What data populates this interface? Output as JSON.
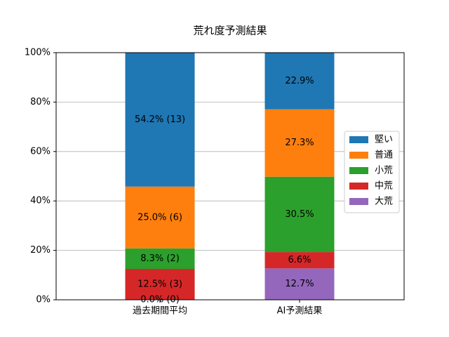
{
  "chart_data": {
    "type": "stacked_bar",
    "title": "荒れ度予測結果",
    "categories": [
      "過去期間平均",
      "AI予測結果"
    ],
    "series": [
      {
        "name": "堅い",
        "color": "#1f77b4",
        "values": [
          54.2,
          22.9
        ],
        "value_labels": [
          "54.2% (13)",
          "22.9%"
        ]
      },
      {
        "name": "普通",
        "color": "#ff7f0e",
        "values": [
          25.0,
          27.3
        ],
        "value_labels": [
          "25.0% (6)",
          "27.3%"
        ]
      },
      {
        "name": "小荒",
        "color": "#2ca02c",
        "values": [
          8.3,
          30.5
        ],
        "value_labels": [
          "8.3% (2)",
          "30.5%"
        ]
      },
      {
        "name": "中荒",
        "color": "#d62728",
        "values": [
          12.5,
          6.6
        ],
        "value_labels": [
          "12.5% (3)",
          "6.6%"
        ]
      },
      {
        "name": "大荒",
        "color": "#9467bd",
        "values": [
          0.0,
          12.7
        ],
        "value_labels": [
          "0.0% (0)",
          "12.7%"
        ]
      }
    ],
    "ylim": [
      0,
      100
    ],
    "yticks": [
      {
        "value": 0,
        "label": "0%"
      },
      {
        "value": 20,
        "label": "20%"
      },
      {
        "value": 40,
        "label": "40%"
      },
      {
        "value": 60,
        "label": "60%"
      },
      {
        "value": 80,
        "label": "80%"
      },
      {
        "value": 100,
        "label": "100%"
      }
    ],
    "grid": true,
    "legend": "right"
  }
}
